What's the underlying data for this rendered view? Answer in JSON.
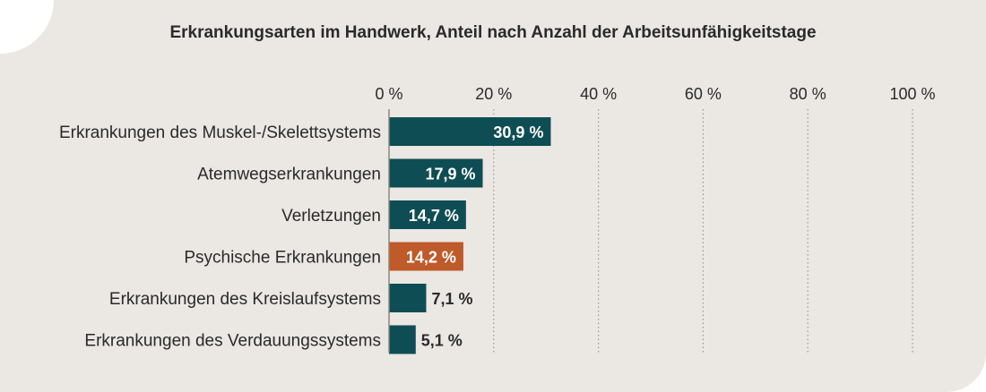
{
  "chart_data": {
    "type": "bar",
    "orientation": "horizontal",
    "title": "Erkrankungsarten im Handwerk, Anteil nach Anzahl der Arbeitsunfähigkeitstage",
    "categories": [
      "Erkrankungen des Muskel-/Skelettsystems",
      "Atemwegserkrankungen",
      "Verletzungen",
      "Psychische Erkrankungen",
      "Erkrankungen des Kreislaufsystems",
      "Erkrankungen des Verdauungssystems"
    ],
    "values": [
      30.9,
      17.9,
      14.7,
      14.2,
      7.1,
      5.1
    ],
    "value_labels": [
      "30,9 %",
      "17,9 %",
      "14,7 %",
      "14,2 %",
      "7,1 %",
      "5,1 %"
    ],
    "highlight_index": 3,
    "xlim": [
      0,
      100
    ],
    "x_ticks": [
      0,
      20,
      40,
      60,
      80,
      100
    ],
    "x_tick_labels": [
      "0 %",
      "20 %",
      "40 %",
      "60 %",
      "80 %",
      "100 %"
    ],
    "tick_position": "top",
    "grid": true,
    "colors": {
      "bar": "#0f4d55",
      "highlight": "#bf5a2a",
      "grid": "#9a9590",
      "text": "#2a2a2a",
      "background": "#ebe7e2"
    }
  }
}
